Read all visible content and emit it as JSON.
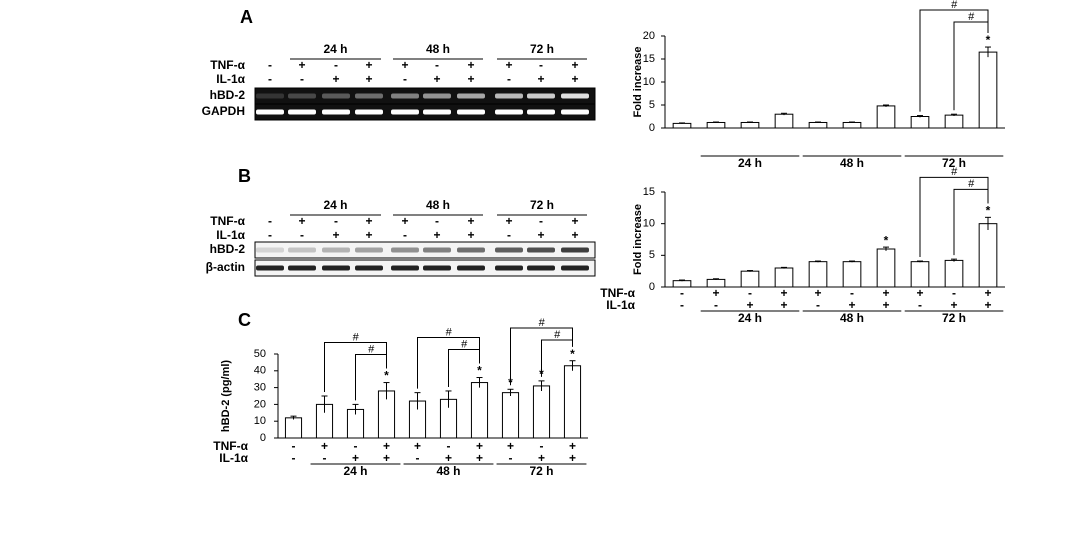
{
  "panel_labels": [
    "A",
    "B",
    "C"
  ],
  "blots": [
    {
      "groups": [
        "24 h",
        "48 h",
        "72 h"
      ],
      "rows": [
        {
          "name": "TNF-α",
          "signs": [
            "-",
            "+",
            "-",
            "+",
            "+",
            "-",
            "+",
            "+",
            "-",
            "+"
          ]
        },
        {
          "name": "IL-1α",
          "signs": [
            "-",
            "-",
            "+",
            "+",
            "-",
            "+",
            "+",
            "-",
            "+",
            "+"
          ]
        }
      ],
      "bands": [
        "hBD-2",
        "GAPDH"
      ]
    },
    {
      "groups": [
        "24 h",
        "48 h",
        "72 h"
      ],
      "rows": [
        {
          "name": "TNF-α",
          "signs": [
            "-",
            "+",
            "-",
            "+",
            "+",
            "-",
            "+",
            "+",
            "-",
            "+"
          ]
        },
        {
          "name": "IL-1α",
          "signs": [
            "-",
            "-",
            "+",
            "+",
            "-",
            "+",
            "+",
            "-",
            "+",
            "+"
          ]
        }
      ],
      "bands": [
        "hBD-2",
        "β-actin"
      ]
    }
  ],
  "chart_data": [
    {
      "type": "bar",
      "ylabel": "Fold increase",
      "values": [
        1,
        1.2,
        1.2,
        3,
        1.2,
        1.2,
        4.8,
        2.5,
        2.8,
        16.5
      ],
      "errors": [
        0.1,
        0.1,
        0.1,
        0.2,
        0.1,
        0.1,
        0.2,
        0.2,
        0.2,
        1.1
      ],
      "markers": [
        null,
        null,
        null,
        null,
        null,
        null,
        null,
        null,
        null,
        "*"
      ],
      "comparisons": [
        {
          "label": "#",
          "pair": [
            7,
            9
          ]
        },
        {
          "label": "#",
          "pair": [
            8,
            9
          ]
        }
      ],
      "groups": [
        "24 h",
        "48 h",
        "72 h"
      ],
      "ylim": [
        0,
        20
      ],
      "yticks": [
        0,
        5,
        10,
        15,
        20
      ],
      "color": "#ffffff"
    },
    {
      "type": "bar",
      "ylabel": "Fold increase",
      "values": [
        1,
        1.2,
        2.5,
        3,
        4,
        4,
        6,
        4,
        4.2,
        10
      ],
      "errors": [
        0.1,
        0.1,
        0.1,
        0.1,
        0.1,
        0.1,
        0.3,
        0.1,
        0.2,
        1
      ],
      "markers": [
        null,
        null,
        null,
        null,
        null,
        null,
        "*",
        null,
        null,
        "*"
      ],
      "comparisons": [
        {
          "label": "#",
          "pair": [
            7,
            9
          ]
        },
        {
          "label": "#",
          "pair": [
            8,
            9
          ]
        }
      ],
      "conditions": [
        {
          "name": "TNF-α",
          "signs": [
            "-",
            "+",
            "-",
            "+",
            "+",
            "-",
            "+",
            "+",
            "-",
            "+"
          ]
        },
        {
          "name": "IL-1α",
          "signs": [
            "-",
            "-",
            "+",
            "+",
            "-",
            "+",
            "+",
            "-",
            "+",
            "+"
          ]
        }
      ],
      "groups": [
        "24 h",
        "48 h",
        "72 h"
      ],
      "ylim": [
        0,
        15
      ],
      "yticks": [
        0,
        5,
        10,
        15
      ],
      "color": "#ffffff"
    },
    {
      "type": "bar",
      "ylabel": "hBD-2 (pg/ml)",
      "values": [
        12,
        20,
        17,
        28,
        22,
        23,
        33,
        27,
        31,
        43
      ],
      "errors": [
        1,
        5,
        3,
        5,
        5,
        5,
        3,
        2,
        3,
        3
      ],
      "markers": [
        null,
        null,
        null,
        "*",
        null,
        null,
        "*",
        "*",
        "*",
        "*"
      ],
      "comparisons": [
        {
          "label": "#",
          "pair": [
            1,
            3
          ]
        },
        {
          "label": "#",
          "pair": [
            2,
            3
          ]
        },
        {
          "label": "#",
          "pair": [
            4,
            6
          ]
        },
        {
          "label": "#",
          "pair": [
            5,
            6
          ]
        },
        {
          "label": "#",
          "pair": [
            7,
            9
          ]
        },
        {
          "label": "#",
          "pair": [
            8,
            9
          ]
        }
      ],
      "conditions": [
        {
          "name": "TNF-α",
          "signs": [
            "-",
            "+",
            "-",
            "+",
            "+",
            "-",
            "+",
            "+",
            "-",
            "+"
          ]
        },
        {
          "name": "IL-1α",
          "signs": [
            "-",
            "-",
            "+",
            "+",
            "-",
            "+",
            "+",
            "-",
            "+",
            "+"
          ]
        }
      ],
      "groups": [
        "24 h",
        "48 h",
        "72 h"
      ],
      "ylim": [
        0,
        50
      ],
      "yticks": [
        0,
        10,
        20,
        30,
        40,
        50
      ],
      "color": "#ffffff"
    }
  ]
}
